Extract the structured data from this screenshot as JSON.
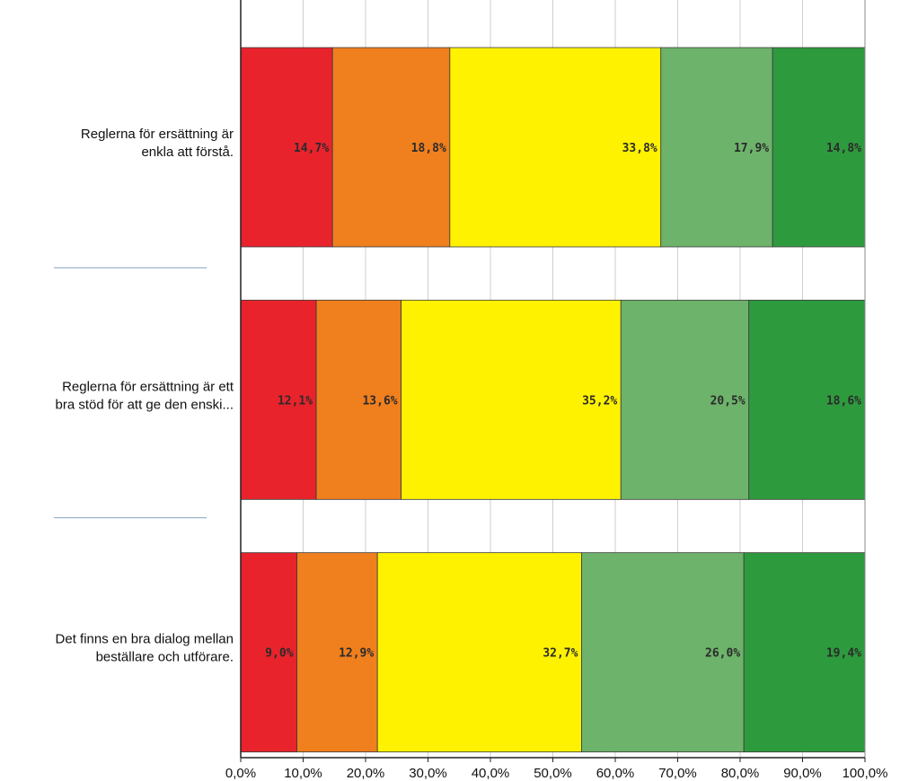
{
  "chart_data": {
    "type": "bar",
    "orientation": "horizontal",
    "stacked": true,
    "percent_stacked": true,
    "categories": [
      "Reglerna för ersättning är enkla att förstå.",
      "Reglerna för ersättning är ett bra stöd för att ge den enski...",
      "Det finns en bra dialog mellan beställare och utförare."
    ],
    "category_label_lines": [
      [
        "Reglerna för ersättning är",
        "enkla att förstå."
      ],
      [
        "Reglerna för ersättning är ett",
        "bra stöd för att ge den enski..."
      ],
      [
        "Det finns en bra dialog mellan",
        "beställare och utförare."
      ]
    ],
    "series": [
      {
        "color": "#e8232c",
        "values": [
          14.7,
          12.1,
          9.0
        ]
      },
      {
        "color": "#f07f1e",
        "values": [
          18.8,
          13.6,
          12.9
        ]
      },
      {
        "color": "#fff200",
        "values": [
          33.8,
          35.2,
          32.7
        ]
      },
      {
        "color": "#6db36b",
        "values": [
          17.9,
          20.5,
          26.0
        ]
      },
      {
        "color": "#2e9a3e",
        "values": [
          14.8,
          18.6,
          19.4
        ]
      }
    ],
    "data_labels": [
      [
        "14,7%",
        "18,8%",
        "33,8%",
        "17,9%",
        "14,8%"
      ],
      [
        "12,1%",
        "13,6%",
        "35,2%",
        "20,5%",
        "18,6%"
      ],
      [
        "9,0%",
        "12,9%",
        "32,7%",
        "26,0%",
        "19,4%"
      ]
    ],
    "xlim": [
      0,
      100
    ],
    "x_ticks": [
      0,
      10,
      20,
      30,
      40,
      50,
      60,
      70,
      80,
      90,
      100
    ],
    "x_tick_labels": [
      "0,0%",
      "10,0%",
      "20,0%",
      "30,0%",
      "40,0%",
      "50,0%",
      "60,0%",
      "70,0%",
      "80,0%",
      "90,0%",
      "100,0%"
    ],
    "grid": true,
    "legend": "none"
  }
}
